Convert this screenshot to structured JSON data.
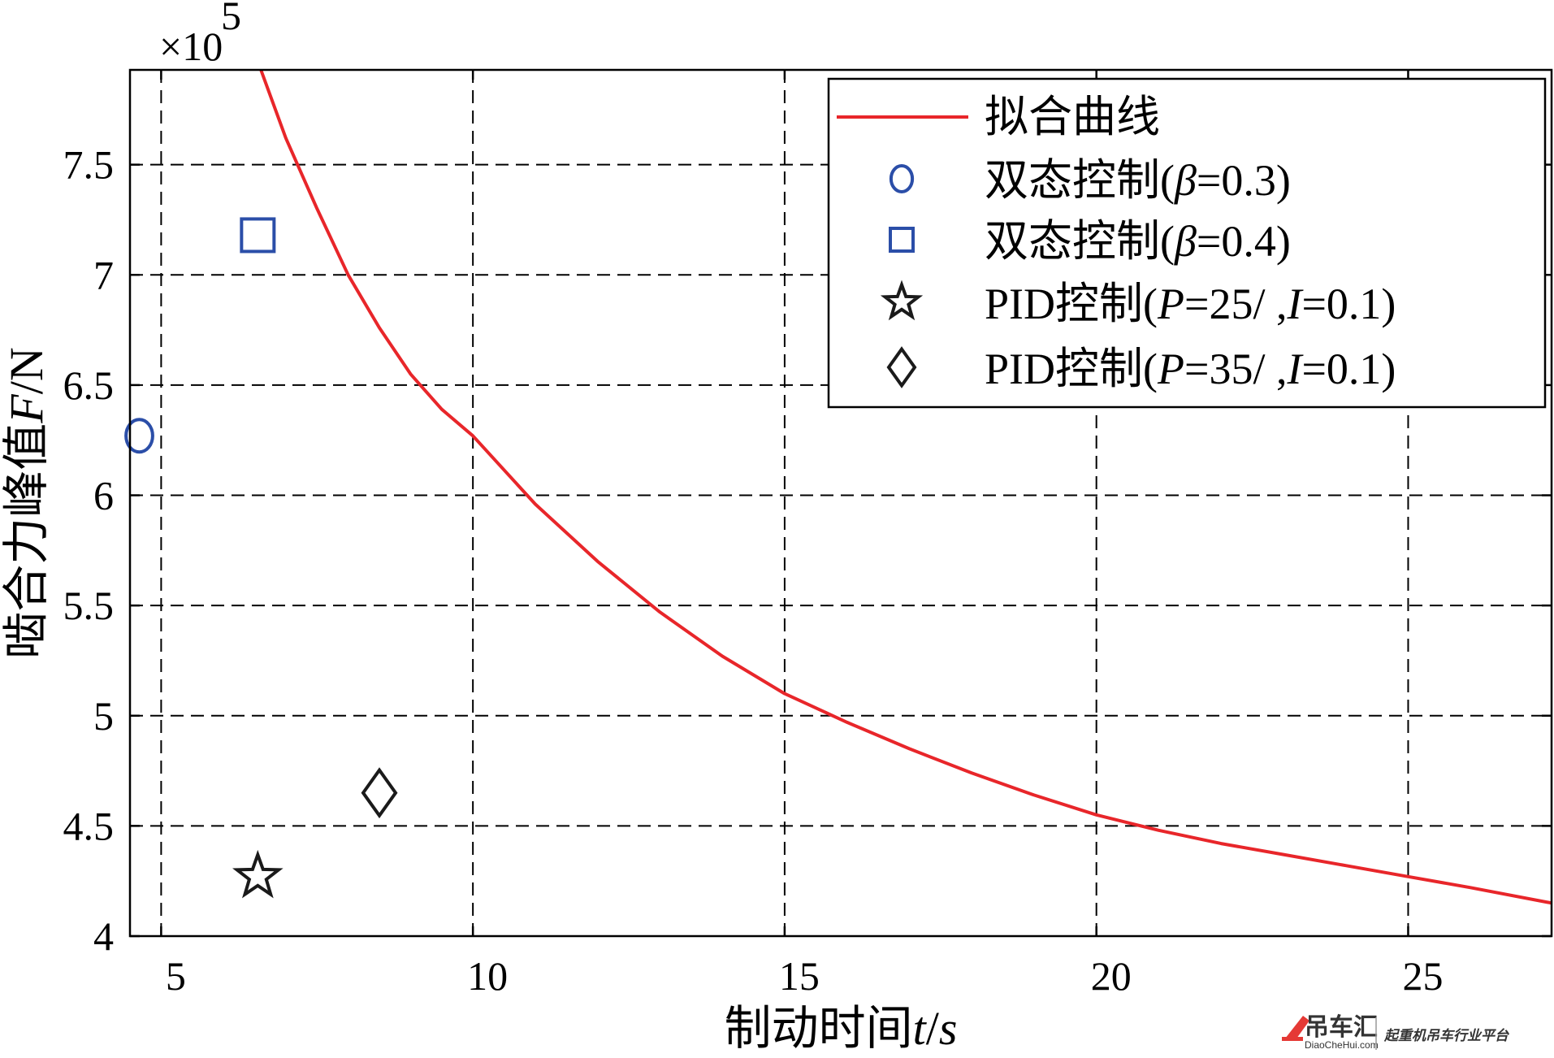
{
  "chart_data": {
    "type": "line",
    "xlabel": "制动时间t/s",
    "ylabel": "啮合力峰值F/N",
    "y_multiplier_label": "×10",
    "y_multiplier_exponent": "5",
    "xlim": [
      4.5,
      27.3
    ],
    "ylim": [
      4.0,
      7.93
    ],
    "x_ticks": [
      5,
      10,
      15,
      20,
      25
    ],
    "y_ticks": [
      4,
      4.5,
      5,
      5.5,
      6,
      6.5,
      7,
      7.5
    ],
    "x_tick_labels": [
      "5",
      "10",
      "15",
      "20",
      "25"
    ],
    "y_tick_labels": [
      "4",
      "4.5",
      "5",
      "5.5",
      "6",
      "6.5",
      "7",
      "7.5"
    ],
    "grid": true,
    "grid_style": "dashed",
    "legend_position": "top-right",
    "fit_curve": {
      "name": "拟合曲线",
      "color": "#e8262a",
      "x": [
        6.6,
        7,
        7.5,
        8,
        8.5,
        9,
        9.5,
        10,
        11,
        12,
        13,
        14,
        15,
        16,
        17,
        18,
        19,
        20,
        21,
        22,
        23,
        24,
        25,
        26,
        27.3
      ],
      "y": [
        7.93,
        7.62,
        7.3,
        7.0,
        6.76,
        6.55,
        6.39,
        6.27,
        5.96,
        5.7,
        5.47,
        5.27,
        5.1,
        4.97,
        4.85,
        4.74,
        4.64,
        4.55,
        4.48,
        4.42,
        4.37,
        4.32,
        4.27,
        4.22,
        4.15
      ]
    },
    "series": [
      {
        "name": "双态控制(β=0.3)",
        "label_prefix": "双态控制(",
        "label_var": "β",
        "label_suffix": "=0.3)",
        "marker": "circle",
        "color": "#2b4ea8",
        "x": [
          4.65
        ],
        "y": [
          6.27
        ]
      },
      {
        "name": "双态控制(β=0.4)",
        "label_prefix": "双态控制(",
        "label_var": "β",
        "label_suffix": "=0.4)",
        "marker": "square",
        "color": "#2b4ea8",
        "x": [
          6.55
        ],
        "y": [
          7.18
        ]
      },
      {
        "name": "PID控制(P=25/  ,I=0.1)",
        "label_prefix": "PID控制(",
        "label_var": "P",
        "label_mid": "=25/  ,",
        "label_var2": "I",
        "label_suffix": "=0.1)",
        "marker": "star",
        "color": "#1a1a1a",
        "x": [
          6.55
        ],
        "y": [
          4.27
        ]
      },
      {
        "name": "PID控制(P=35/  ,I=0.1)",
        "label_prefix": "PID控制(",
        "label_var": "P",
        "label_mid": "=35/  ,",
        "label_var2": "I",
        "label_suffix": "=0.1)",
        "marker": "diamond",
        "color": "#1a1a1a",
        "x": [
          8.5
        ],
        "y": [
          4.65
        ]
      }
    ]
  },
  "watermark": {
    "brand": "吊车汇",
    "site": "DiaoCheHui.com",
    "slogan": "起重机吊车行业平台"
  }
}
